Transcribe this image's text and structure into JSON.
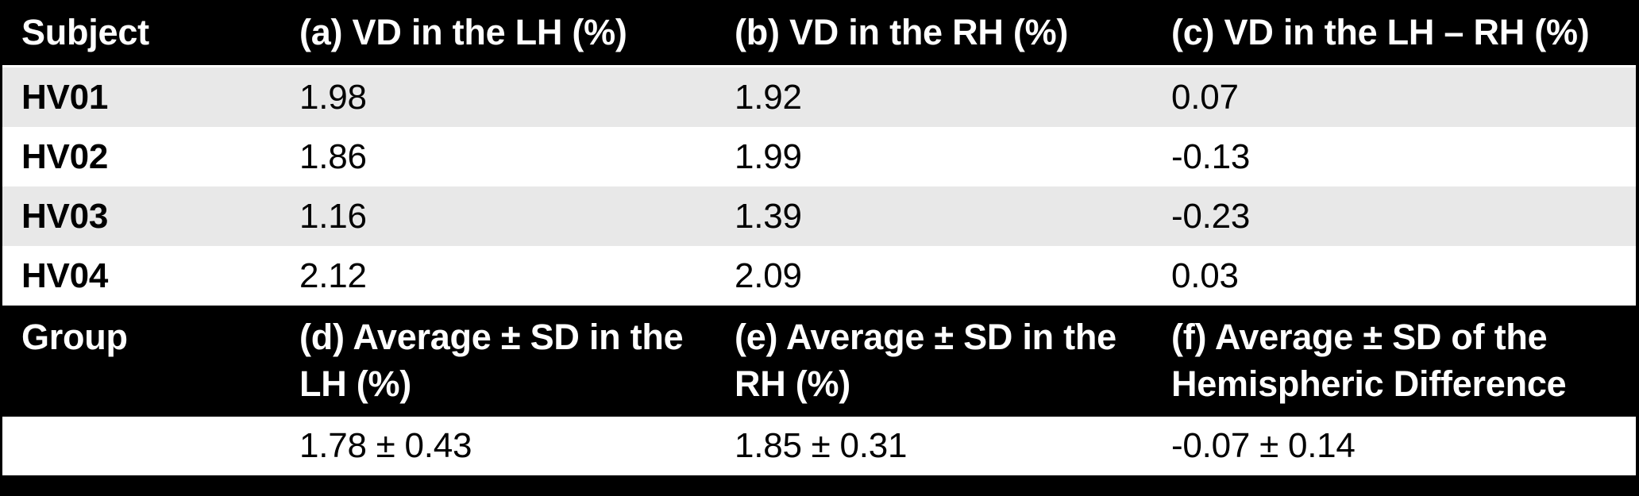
{
  "chart_data": {
    "type": "table",
    "columns": [
      {
        "id": "subject",
        "label": "Subject"
      },
      {
        "id": "a",
        "label": "(a) VD in the LH (%)"
      },
      {
        "id": "b",
        "label": "(b) VD in the RH (%)"
      },
      {
        "id": "c",
        "label": "(c) VD in the LH – RH (%)"
      }
    ],
    "rows": [
      {
        "subject": "HV01",
        "a": "1.98",
        "b": "1.92",
        "c": "0.07"
      },
      {
        "subject": "HV02",
        "a": "1.86",
        "b": "1.99",
        "c": "-0.13"
      },
      {
        "subject": "HV03",
        "a": "1.16",
        "b": "1.39",
        "c": "-0.23"
      },
      {
        "subject": "HV04",
        "a": "2.12",
        "b": "2.09",
        "c": "0.03"
      }
    ],
    "group_header": {
      "label": "Group",
      "d": "(d) Average ± SD in the LH (%)",
      "e": "(e) Average ± SD in the RH (%)",
      "f": "(f) Average ± SD of the Hemispheric Difference (%)"
    },
    "group_values": {
      "d": "1.78 ± 0.43",
      "e": "1.85 ± 0.31",
      "f": "-0.07 ± 0.14"
    }
  },
  "colors": {
    "header_bg": "#000000",
    "header_text": "#ffffff",
    "row_alt_bg": "#e8e8e8",
    "row_bg": "#ffffff",
    "body_text": "#000000",
    "frame": "#000000",
    "separator": "#ffffff"
  }
}
